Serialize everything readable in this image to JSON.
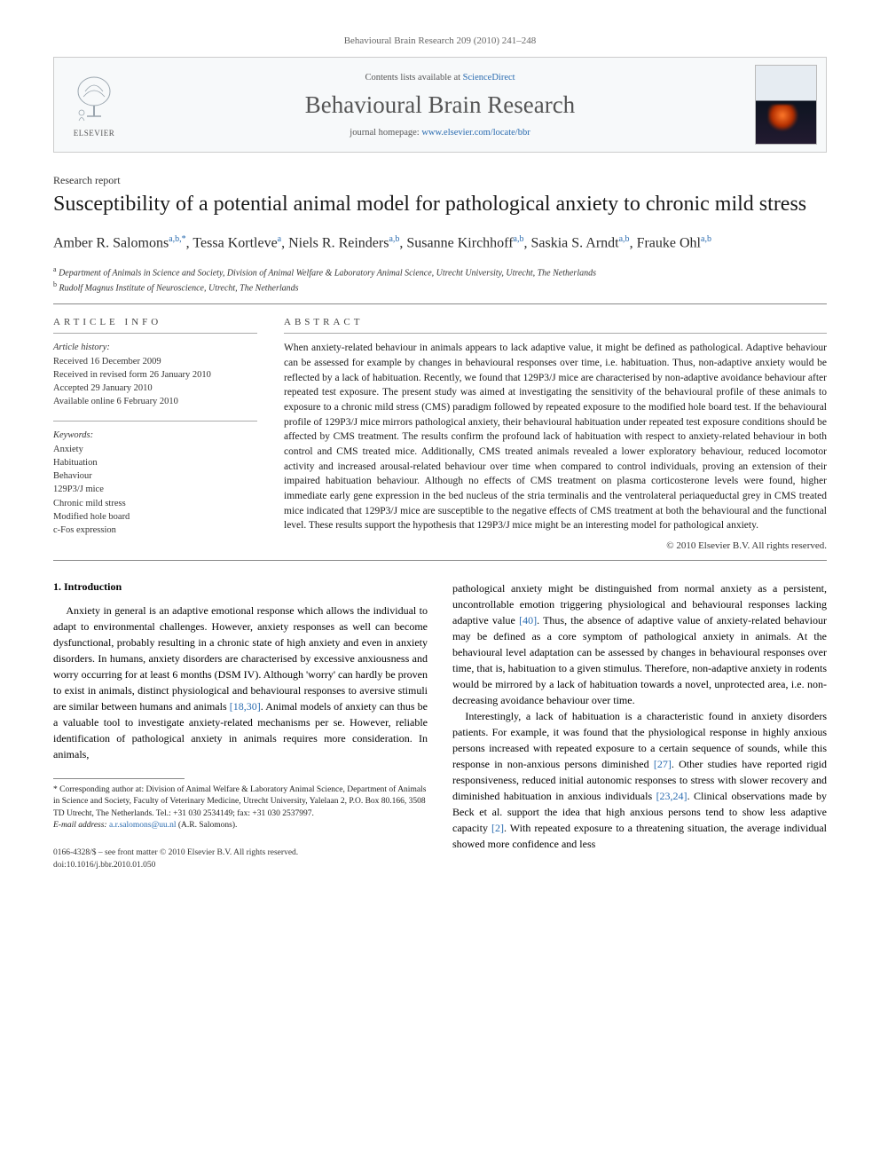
{
  "running_header": "Behavioural Brain Research 209 (2010) 241–248",
  "header_box": {
    "elsevier_label": "ELSEVIER",
    "contents_prefix": "Contents lists available at ",
    "contents_link": "ScienceDirect",
    "journal_name": "Behavioural Brain Research",
    "homepage_prefix": "journal homepage: ",
    "homepage_url": "www.elsevier.com/locate/bbr"
  },
  "report_type": "Research report",
  "title": "Susceptibility of a potential animal model for pathological anxiety to chronic mild stress",
  "authors_html": "Amber R. Salomons<span class='sup'>a,b,*</span>, Tessa Kortleve<span class='sup'>a</span>, Niels R. Reinders<span class='sup'>a,b</span>, Susanne Kirchhoff<span class='sup'>a,b</span>, Saskia S. Arndt<span class='sup'>a,b</span>, Frauke Ohl<span class='sup'>a,b</span>",
  "affiliations": {
    "a": "Department of Animals in Science and Society, Division of Animal Welfare & Laboratory Animal Science, Utrecht University, Utrecht, The Netherlands",
    "b": "Rudolf Magnus Institute of Neuroscience, Utrecht, The Netherlands"
  },
  "article_info": {
    "label": "ARTICLE INFO",
    "history_label": "Article history:",
    "history": [
      "Received 16 December 2009",
      "Received in revised form 26 January 2010",
      "Accepted 29 January 2010",
      "Available online 6 February 2010"
    ],
    "keywords_label": "Keywords:",
    "keywords": [
      "Anxiety",
      "Habituation",
      "Behaviour",
      "129P3/J mice",
      "Chronic mild stress",
      "Modified hole board",
      "c-Fos expression"
    ]
  },
  "abstract": {
    "label": "ABSTRACT",
    "text": "When anxiety-related behaviour in animals appears to lack adaptive value, it might be defined as pathological. Adaptive behaviour can be assessed for example by changes in behavioural responses over time, i.e. habituation. Thus, non-adaptive anxiety would be reflected by a lack of habituation. Recently, we found that 129P3/J mice are characterised by non-adaptive avoidance behaviour after repeated test exposure. The present study was aimed at investigating the sensitivity of the behavioural profile of these animals to exposure to a chronic mild stress (CMS) paradigm followed by repeated exposure to the modified hole board test. If the behavioural profile of 129P3/J mice mirrors pathological anxiety, their behavioural habituation under repeated test exposure conditions should be affected by CMS treatment. The results confirm the profound lack of habituation with respect to anxiety-related behaviour in both control and CMS treated mice. Additionally, CMS treated animals revealed a lower exploratory behaviour, reduced locomotor activity and increased arousal-related behaviour over time when compared to control individuals, proving an extension of their impaired habituation behaviour. Although no effects of CMS treatment on plasma corticosterone levels were found, higher immediate early gene expression in the bed nucleus of the stria terminalis and the ventrolateral periaqueductal grey in CMS treated mice indicated that 129P3/J mice are susceptible to the negative effects of CMS treatment at both the behavioural and the functional level. These results support the hypothesis that 129P3/J mice might be an interesting model for pathological anxiety.",
    "copyright": "© 2010 Elsevier B.V. All rights reserved."
  },
  "body": {
    "section_number": "1.",
    "section_title": "Introduction",
    "col1_p1": "Anxiety in general is an adaptive emotional response which allows the individual to adapt to environmental challenges. However, anxiety responses as well can become dysfunctional, probably resulting in a chronic state of high anxiety and even in anxiety disorders. In humans, anxiety disorders are characterised by excessive anxiousness and worry occurring for at least 6 months (DSM IV). Although 'worry' can hardly be proven to exist in animals, distinct physiological and behavioural responses to aversive stimuli are similar between humans and animals ",
    "col1_cite1": "[18,30]",
    "col1_p1b": ". Animal models of anxiety can thus be a valuable tool to investigate anxiety-related mechanisms per se. However, reliable identification of pathological anxiety in animals requires more consideration. In animals,",
    "col2_p1a": "pathological anxiety might be distinguished from normal anxiety as a persistent, uncontrollable emotion triggering physiological and behavioural responses lacking adaptive value ",
    "col2_cite1": "[40]",
    "col2_p1b": ". Thus, the absence of adaptive value of anxiety-related behaviour may be defined as a core symptom of pathological anxiety in animals. At the behavioural level adaptation can be assessed by changes in behavioural responses over time, that is, habituation to a given stimulus. Therefore, non-adaptive anxiety in rodents would be mirrored by a lack of habituation towards a novel, unprotected area, i.e. non-decreasing avoidance behaviour over time.",
    "col2_p2a": "Interestingly, a lack of habituation is a characteristic found in anxiety disorders patients. For example, it was found that the physiological response in highly anxious persons increased with repeated exposure to a certain sequence of sounds, while this response in non-anxious persons diminished ",
    "col2_cite2": "[27]",
    "col2_p2b": ". Other studies have reported rigid responsiveness, reduced initial autonomic responses to stress with slower recovery and diminished habituation in anxious individuals ",
    "col2_cite3": "[23,24]",
    "col2_p2c": ". Clinical observations made by Beck et al. support the idea that high anxious persons tend to show less adaptive capacity ",
    "col2_cite4": "[2]",
    "col2_p2d": ". With repeated exposure to a threatening situation, the average individual showed more confidence and less"
  },
  "footnote": {
    "corresponding": "* Corresponding author at: Division of Animal Welfare & Laboratory Animal Science, Department of Animals in Science and Society, Faculty of Veterinary Medicine, Utrecht University, Yalelaan 2, P.O. Box 80.166, 3508 TD Utrecht, The Netherlands. Tel.: +31 030 2534149; fax: +31 030 2537997.",
    "email_label": "E-mail address: ",
    "email": "a.r.salomons@uu.nl",
    "email_suffix": " (A.R. Salomons)."
  },
  "doi": {
    "line1": "0166-4328/$ – see front matter © 2010 Elsevier B.V. All rights reserved.",
    "line2": "doi:10.1016/j.bbr.2010.01.050"
  },
  "colors": {
    "link": "#2b6cb0",
    "rule": "#888888",
    "box_bg": "#f7f9fa",
    "box_border": "#cccccc"
  }
}
